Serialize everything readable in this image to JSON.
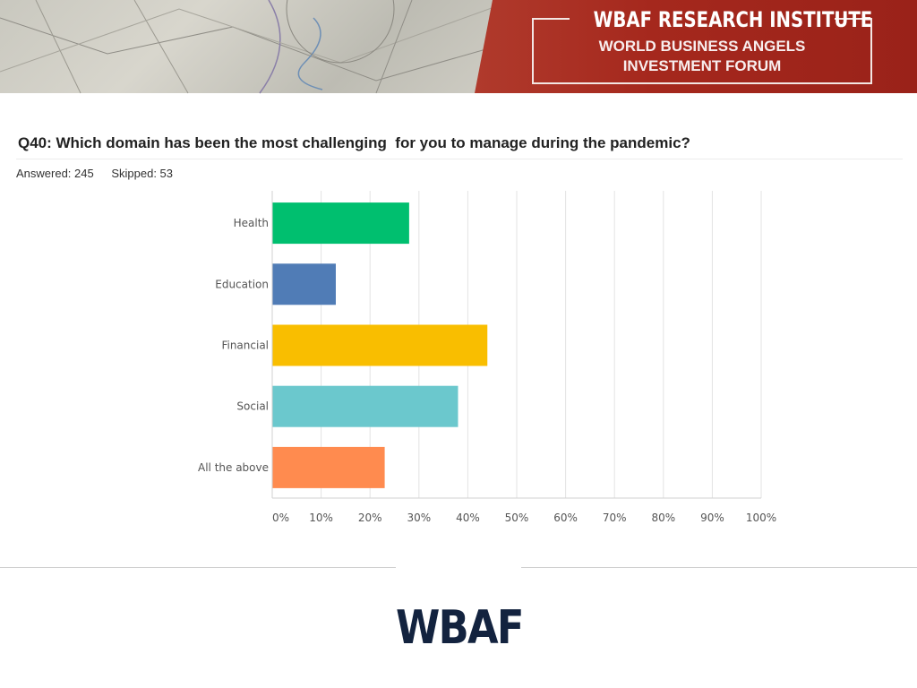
{
  "banner": {
    "title": "WBAF RESEARCH INSTITUTE",
    "line1": "WORLD BUSINESS ANGELS",
    "line2": "INVESTMENT FORUM"
  },
  "question": "Q40: Which domain has been the most challenging  for you to manage during the pandemic?",
  "stats": {
    "answered": "Answered: 245",
    "skipped": "Skipped: 53"
  },
  "logo": "WBAF",
  "chart_data": {
    "type": "bar",
    "orientation": "horizontal",
    "categories": [
      "Health",
      "Education",
      "Financial",
      "Social",
      "All the above"
    ],
    "values": [
      28,
      13,
      44,
      38,
      23
    ],
    "colors": [
      "#00bf6f",
      "#507cb6",
      "#f9be00",
      "#6bc8cd",
      "#ff8b4f"
    ],
    "xlim": [
      0,
      100
    ],
    "x_ticks": [
      "0%",
      "10%",
      "20%",
      "30%",
      "40%",
      "50%",
      "60%",
      "70%",
      "80%",
      "90%",
      "100%"
    ],
    "grid": true
  }
}
